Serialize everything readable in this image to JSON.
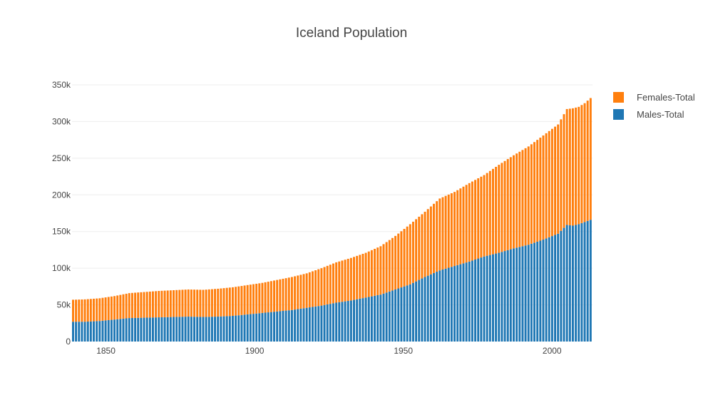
{
  "chart_data": {
    "type": "bar",
    "stacked": true,
    "title": "Iceland Population",
    "xlabel": "",
    "ylabel": "",
    "x_ticks": [
      "1850",
      "1900",
      "1950",
      "2000"
    ],
    "y_ticks": [
      "0",
      "50k",
      "100k",
      "150k",
      "200k",
      "250k",
      "300k",
      "350k"
    ],
    "xlim": [
      1841,
      2016
    ],
    "ylim": [
      0,
      350000
    ],
    "legend_position": "top-right",
    "grid": true,
    "x": [
      1841,
      1845,
      1850,
      1855,
      1860,
      1865,
      1870,
      1875,
      1880,
      1885,
      1890,
      1895,
      1900,
      1905,
      1910,
      1915,
      1920,
      1925,
      1930,
      1935,
      1940,
      1945,
      1950,
      1955,
      1960,
      1965,
      1970,
      1975,
      1980,
      1985,
      1990,
      1995,
      2000,
      2005,
      2008,
      2010,
      2012,
      2014,
      2016
    ],
    "series": [
      {
        "name": "Males-Total",
        "color": "#1f77b4",
        "values": [
          27000,
          27000,
          28000,
          30000,
          32000,
          32500,
          33000,
          33500,
          34000,
          33500,
          34000,
          35000,
          37000,
          39000,
          41000,
          43000,
          46000,
          49000,
          53000,
          56000,
          60000,
          64000,
          71000,
          78000,
          88000,
          97000,
          103000,
          109000,
          116000,
          121000,
          127000,
          132000,
          139000,
          147000,
          159000,
          158000,
          160000,
          163000,
          166000
        ]
      },
      {
        "name": "Females-Total",
        "color": "#ff7f0e",
        "values": [
          30000,
          30500,
          31000,
          32000,
          34000,
          35000,
          36000,
          36500,
          37000,
          37000,
          38000,
          39000,
          40000,
          41000,
          43000,
          45000,
          47000,
          51000,
          55000,
          58000,
          61000,
          66000,
          73000,
          82000,
          89000,
          98000,
          101000,
          107000,
          111000,
          120000,
          127000,
          134000,
          142000,
          149000,
          158000,
          160000,
          160000,
          162000,
          166000
        ]
      }
    ]
  }
}
